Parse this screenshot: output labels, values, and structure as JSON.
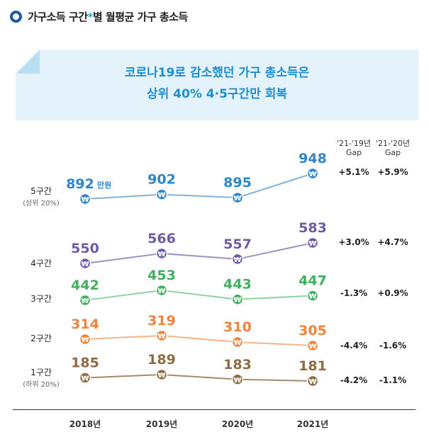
{
  "header": {
    "title_before": "가구소득 구간",
    "title_star": "*",
    "title_after": "별 월평균 가구 총소득"
  },
  "banner": {
    "line1": "코로나19로 감소했던 가구 총소득은",
    "line2": "상위 40% 4·5구간만 회복"
  },
  "chart_data": {
    "type": "line",
    "x": [
      "2018년",
      "2019년",
      "2020년",
      "2021년"
    ],
    "unit_label": "만원",
    "gap_headers": [
      "'21-'19년\nGap",
      "'21-'20년\nGap"
    ],
    "series": [
      {
        "name": "5구간",
        "sublabel": "(상위 20%)",
        "values": [
          892,
          902,
          895,
          948
        ],
        "color": "#2e86c8",
        "line_color": "#7fb3df",
        "gaps": [
          "+5.1%",
          "+5.9%"
        ]
      },
      {
        "name": "4구간",
        "sublabel": "",
        "values": [
          550,
          566,
          557,
          583
        ],
        "color": "#6f5aa8",
        "line_color": "#9f8fcb",
        "gaps": [
          "+3.0%",
          "+4.7%"
        ]
      },
      {
        "name": "3구간",
        "sublabel": "",
        "values": [
          442,
          453,
          443,
          447
        ],
        "color": "#3fb05d",
        "line_color": "#8dd3a0",
        "gaps": [
          "-1.3%",
          "+0.9%"
        ]
      },
      {
        "name": "2구간",
        "sublabel": "",
        "values": [
          314,
          319,
          310,
          305
        ],
        "color": "#f0843c",
        "line_color": "#f5b488",
        "gaps": [
          "-4.4%",
          "-1.6%"
        ]
      },
      {
        "name": "1구간",
        "sublabel": "(하위 20%)",
        "values": [
          185,
          189,
          183,
          181
        ],
        "color": "#8e6b45",
        "line_color": "#a88a6a",
        "gaps": [
          "-4.2%",
          "-1.1%"
        ]
      }
    ],
    "marker_symbol": "₩"
  }
}
